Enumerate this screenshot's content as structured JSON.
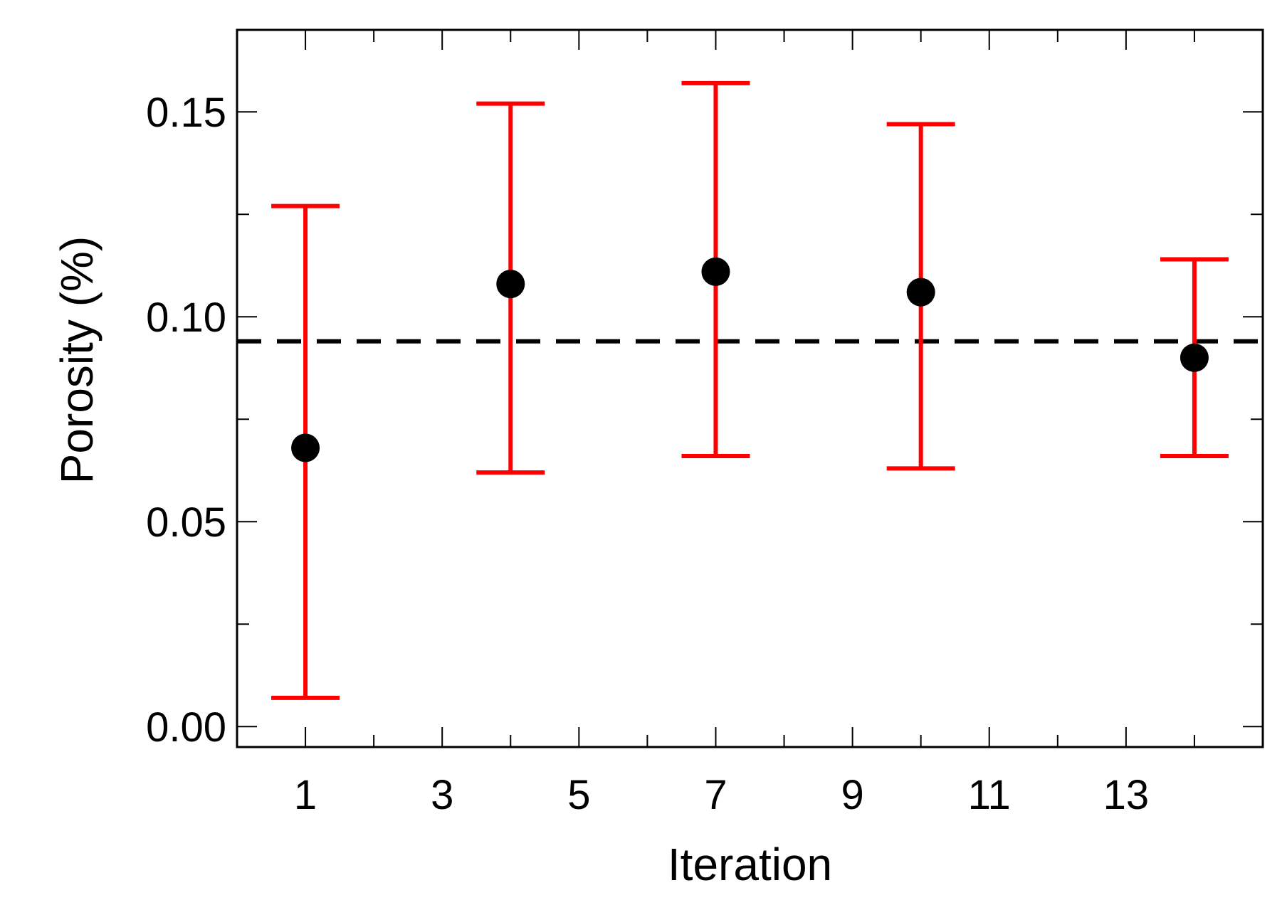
{
  "chart_data": {
    "type": "scatter",
    "title": "",
    "xlabel": "Iteration",
    "ylabel": "Porosity (%)",
    "xlim": [
      0,
      15
    ],
    "ylim": [
      -0.005,
      0.17
    ],
    "x_major_ticks": [
      1,
      3,
      5,
      7,
      9,
      11,
      13
    ],
    "x_minor_ticks": [
      2,
      4,
      6,
      8,
      10,
      12,
      14
    ],
    "y_major_ticks": [
      0.0,
      0.05,
      0.1,
      0.15
    ],
    "y_major_tick_labels": [
      "0.00",
      "0.05",
      "0.10",
      "0.15"
    ],
    "y_minor_ticks": [
      0.025,
      0.075,
      0.125
    ],
    "grid": false,
    "series": [
      {
        "marker_color": "#000000",
        "errorbar_color": "#ff0000",
        "points": [
          {
            "x": 1,
            "y": 0.068,
            "lower": 0.007,
            "upper": 0.127
          },
          {
            "x": 4,
            "y": 0.108,
            "lower": 0.062,
            "upper": 0.152
          },
          {
            "x": 7,
            "y": 0.111,
            "lower": 0.066,
            "upper": 0.157
          },
          {
            "x": 10,
            "y": 0.106,
            "lower": 0.063,
            "upper": 0.147
          },
          {
            "x": 14,
            "y": 0.09,
            "lower": 0.066,
            "upper": 0.114
          }
        ]
      }
    ],
    "reference_line": {
      "y": 0.094,
      "style": "dashed",
      "color": "#000000"
    }
  }
}
